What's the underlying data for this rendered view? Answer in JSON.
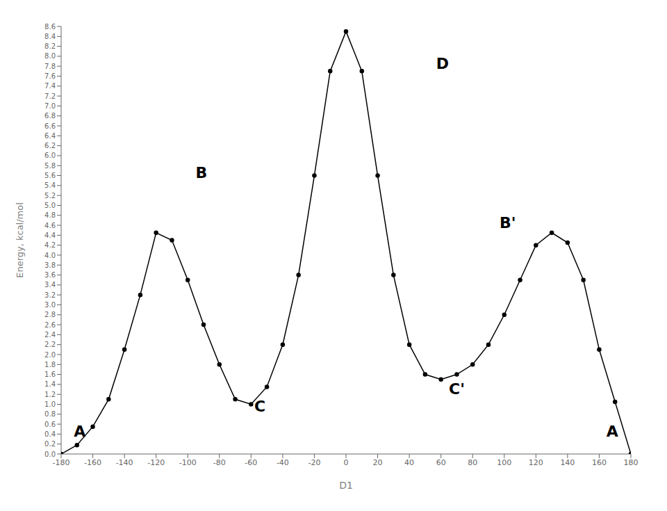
{
  "chart_data": {
    "type": "line",
    "xlabel": "D1",
    "ylabel": "Energy, kcal/mol",
    "xlim": [
      -180,
      180
    ],
    "ylim": [
      0,
      8.6
    ],
    "xticks": [
      -180,
      -160,
      -140,
      -120,
      -100,
      -80,
      -60,
      -40,
      -20,
      0,
      20,
      40,
      60,
      80,
      100,
      120,
      140,
      160,
      180
    ],
    "yticks": [
      {
        "value": 0,
        "label": "0.0"
      },
      0.2,
      0.4,
      0.6,
      0.8,
      {
        "value": 1,
        "label": "1.0"
      },
      1.2,
      1.4,
      1.6,
      1.8,
      {
        "value": 2,
        "label": "2.0"
      },
      2.2,
      2.4,
      2.6,
      2.8,
      {
        "value": 3,
        "label": "3.0"
      },
      3.2,
      3.4,
      3.6,
      3.8,
      {
        "value": 4,
        "label": "4.0"
      },
      4.2,
      4.4,
      4.6,
      4.8,
      {
        "value": 5,
        "label": "5.0"
      },
      5.2,
      5.4,
      5.6,
      5.8,
      {
        "value": 6,
        "label": "6.0"
      },
      6.2,
      6.4,
      6.6,
      6.8,
      {
        "value": 7,
        "label": "7.0"
      },
      7.2,
      7.4,
      7.6,
      7.8,
      {
        "value": 8,
        "label": "8.0"
      },
      8.2,
      8.4,
      8.6
    ],
    "x": [
      -180,
      -170,
      -160,
      -150,
      -140,
      -130,
      -120,
      -110,
      -100,
      -90,
      -80,
      -70,
      -60,
      -50,
      -40,
      -30,
      -20,
      -10,
      0,
      10,
      20,
      30,
      40,
      50,
      60,
      70,
      80,
      90,
      100,
      110,
      120,
      130,
      140,
      150,
      160,
      170,
      180
    ],
    "values": [
      0.0,
      0.18,
      0.55,
      1.1,
      2.1,
      3.2,
      4.45,
      4.3,
      3.5,
      2.6,
      1.8,
      1.1,
      1.0,
      1.35,
      2.2,
      3.6,
      5.6,
      7.7,
      8.5,
      7.7,
      5.6,
      3.6,
      2.2,
      1.6,
      1.5,
      1.6,
      1.8,
      2.2,
      2.8,
      3.5,
      4.2,
      4.45,
      4.25,
      3.5,
      2.1,
      1.05,
      0.0
    ],
    "color": "#000000",
    "marker": "circle",
    "grid": false,
    "annotations": [
      {
        "text": "A",
        "x": -172,
        "y": 0.35
      },
      {
        "text": "B",
        "x": -95,
        "y": 5.55
      },
      {
        "text": "C",
        "x": -58,
        "y": 0.85
      },
      {
        "text": "D",
        "x": 57,
        "y": 7.75
      },
      {
        "text": "C'",
        "x": 65,
        "y": 1.2
      },
      {
        "text": "B'",
        "x": 97,
        "y": 4.55
      },
      {
        "text": "A",
        "x": 172,
        "y": 0.35
      }
    ]
  }
}
